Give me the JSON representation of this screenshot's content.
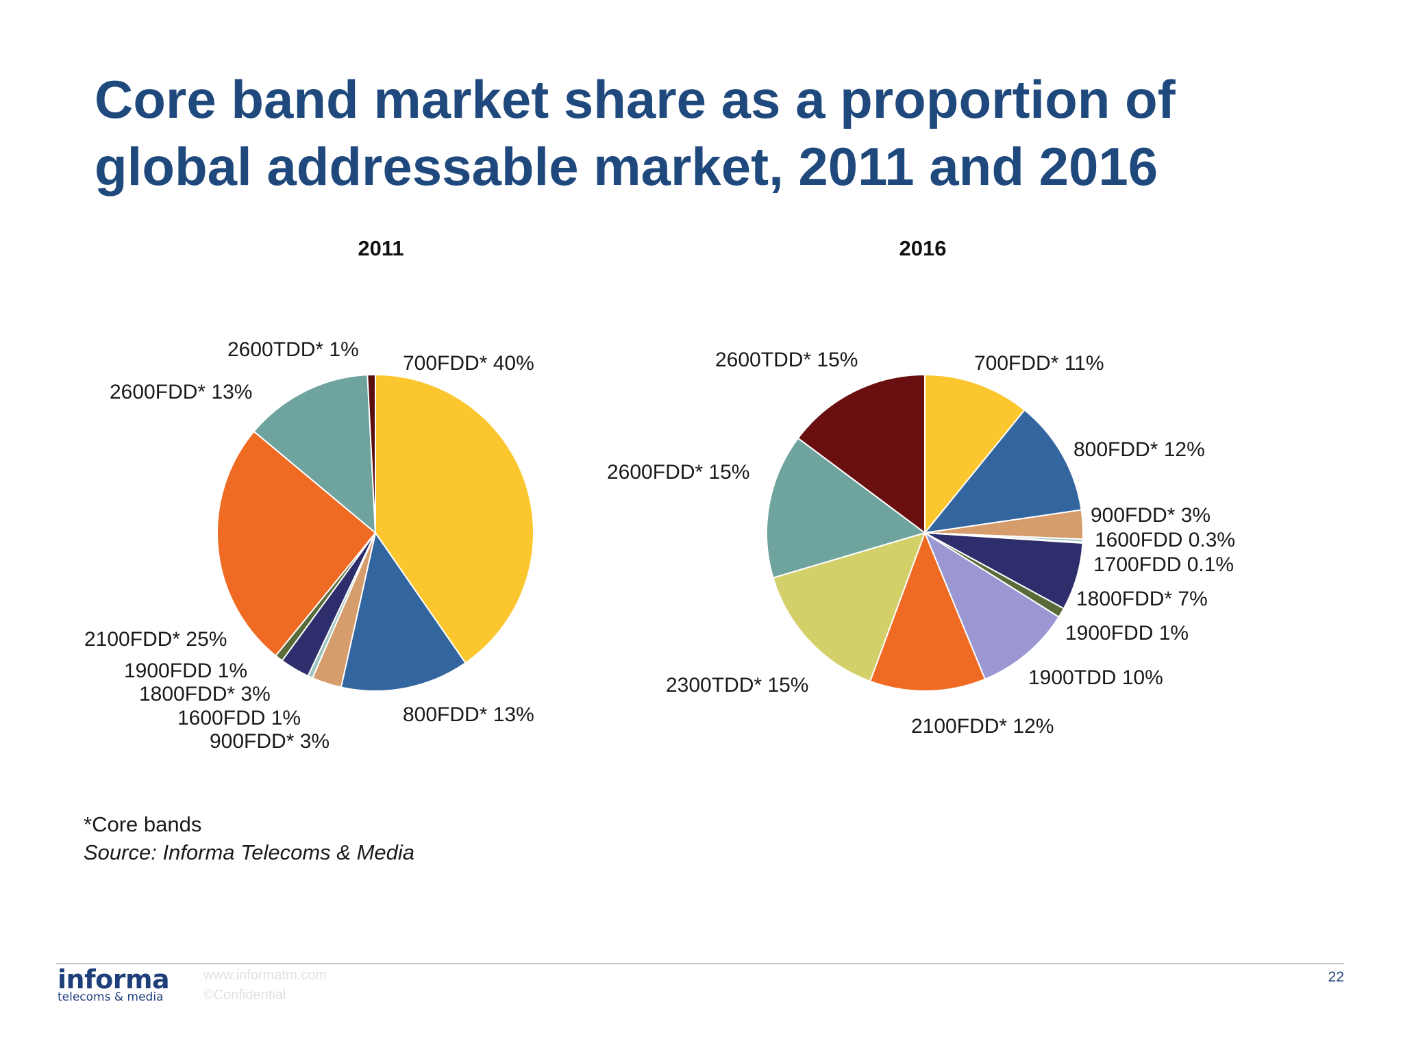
{
  "title": {
    "line1": "Core band market share as a proportion of",
    "line2": "global addressable market, 2011 and 2016"
  },
  "chart_data": [
    {
      "type": "pie",
      "title": "2011",
      "slices": [
        {
          "label": "700FDD*",
          "value_text": "40%",
          "value": 40,
          "color": "#fcc62e"
        },
        {
          "label": "800FDD*",
          "value_text": "13%",
          "value": 13,
          "color": "#33669e"
        },
        {
          "label": "900FDD*",
          "value_text": "3%",
          "value": 3,
          "color": "#d59c6c"
        },
        {
          "label": "1600FDD",
          "value_text": "1%",
          "value": 0.5,
          "color": "#9ec4c0"
        },
        {
          "label": "1800FDD*",
          "value_text": "3%",
          "value": 3,
          "color": "#2e2e6c"
        },
        {
          "label": "1900FDD",
          "value_text": "1%",
          "value": 0.8,
          "color": "#586b38"
        },
        {
          "label": "2100FDD*",
          "value_text": "25%",
          "value": 25,
          "color": "#ef6a22"
        },
        {
          "label": "2600FDD*",
          "value_text": "13%",
          "value": 13,
          "color": "#6fa39e"
        },
        {
          "label": "2600TDD*",
          "value_text": "1%",
          "value": 0.8,
          "color": "#5a0f0f"
        }
      ]
    },
    {
      "type": "pie",
      "title": "2016",
      "slices": [
        {
          "label": "700FDD*",
          "value_text": "11%",
          "value": 11,
          "color": "#fcc62e"
        },
        {
          "label": "800FDD*",
          "value_text": "12%",
          "value": 12,
          "color": "#33669e"
        },
        {
          "label": "900FDD*",
          "value_text": "3%",
          "value": 3,
          "color": "#d59c6c"
        },
        {
          "label": "1600FDD",
          "value_text": "0.3%",
          "value": 0.3,
          "color": "#9ec4c0"
        },
        {
          "label": "1700FDD",
          "value_text": "0.1%",
          "value": 0.1,
          "color": "#8fb7d8"
        },
        {
          "label": "1800FDD*",
          "value_text": "7%",
          "value": 7,
          "color": "#2e2e6c"
        },
        {
          "label": "1900FDD",
          "value_text": "1%",
          "value": 1,
          "color": "#586b38"
        },
        {
          "label": "1900TDD",
          "value_text": "10%",
          "value": 10,
          "color": "#9a97d3"
        },
        {
          "label": "2100FDD*",
          "value_text": "12%",
          "value": 12,
          "color": "#ef6a22"
        },
        {
          "label": "2300TDD*",
          "value_text": "15%",
          "value": 15,
          "color": "#d3d06a"
        },
        {
          "label": "2600FDD*",
          "value_text": "15%",
          "value": 15,
          "color": "#6fa39e"
        },
        {
          "label": "2600TDD*",
          "value_text": "15%",
          "value": 15,
          "color": "#6a0f0f"
        }
      ]
    }
  ],
  "notes": {
    "core_bands": "*Core bands",
    "source": "Source: Informa Telecoms & Media"
  },
  "footer": {
    "logo_name": "informa",
    "logo_subtitle": "telecoms & media",
    "website": "www.informatm.com",
    "confidential": "©Confidential",
    "page_number": "22"
  }
}
